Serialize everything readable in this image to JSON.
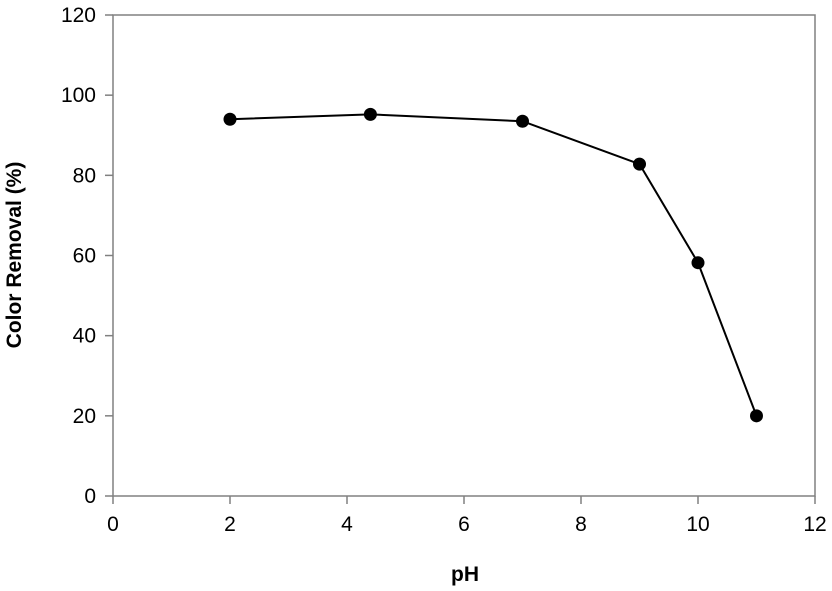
{
  "chart_data": {
    "type": "line",
    "title": "",
    "xlabel": "pH",
    "ylabel": "Color Removal (%)",
    "xlim": [
      0,
      12
    ],
    "ylim": [
      0,
      120
    ],
    "xticks": [
      0,
      2,
      4,
      6,
      8,
      10,
      12
    ],
    "yticks": [
      0,
      20,
      40,
      60,
      80,
      100,
      120
    ],
    "grid": false,
    "legend": "none",
    "series": [
      {
        "color": "#000000",
        "marker": "circle",
        "points": [
          {
            "x": 2,
            "y": 94.0
          },
          {
            "x": 4.4,
            "y": 95.2
          },
          {
            "x": 7,
            "y": 93.5
          },
          {
            "x": 9,
            "y": 82.8
          },
          {
            "x": 10,
            "y": 58.2
          },
          {
            "x": 11,
            "y": 20.0
          }
        ]
      }
    ]
  }
}
